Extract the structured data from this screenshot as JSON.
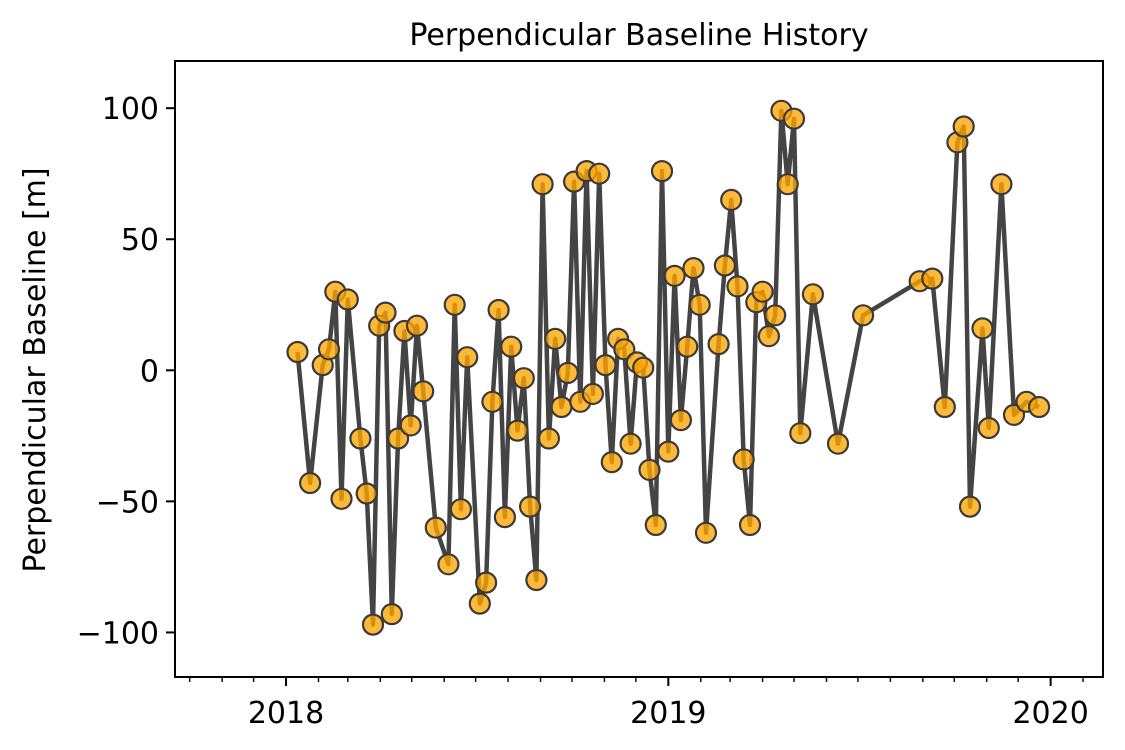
{
  "chart_data": {
    "type": "line",
    "title": "Perpendicular Baseline History",
    "xlabel": "",
    "ylabel": "Perpendicular Baseline [m]",
    "xlim": [
      "2017-09-17",
      "2020-02-20"
    ],
    "ylim": [
      -117,
      118
    ],
    "x_ticks": [
      "2018",
      "2019",
      "2020"
    ],
    "y_ticks": [
      -100,
      -50,
      0,
      50,
      100
    ],
    "y_tick_labels": [
      "−100",
      "−50",
      "0",
      "50",
      "100"
    ],
    "line_color": "#3a3a3a",
    "marker_color": "#ffa500",
    "marker_edge_color": "#3a3a3a",
    "grid": false,
    "series": [
      {
        "points": [
          [
            "2018-01-12",
            7
          ],
          [
            "2018-01-24",
            -43
          ],
          [
            "2018-02-05",
            2
          ],
          [
            "2018-02-11",
            8
          ],
          [
            "2018-02-17",
            30
          ],
          [
            "2018-02-23",
            -49
          ],
          [
            "2018-03-01",
            27
          ],
          [
            "2018-03-13",
            -26
          ],
          [
            "2018-03-19",
            -47
          ],
          [
            "2018-03-25",
            -97
          ],
          [
            "2018-03-31",
            17
          ],
          [
            "2018-04-06",
            22
          ],
          [
            "2018-04-12",
            -93
          ],
          [
            "2018-04-18",
            -26
          ],
          [
            "2018-04-24",
            15
          ],
          [
            "2018-04-30",
            -21
          ],
          [
            "2018-05-06",
            17
          ],
          [
            "2018-05-12",
            -8
          ],
          [
            "2018-05-24",
            -60
          ],
          [
            "2018-06-05",
            -74
          ],
          [
            "2018-06-11",
            25
          ],
          [
            "2018-06-17",
            -53
          ],
          [
            "2018-06-23",
            5
          ],
          [
            "2018-07-05",
            -89
          ],
          [
            "2018-07-11",
            -81
          ],
          [
            "2018-07-17",
            -12
          ],
          [
            "2018-07-23",
            23
          ],
          [
            "2018-07-29",
            -56
          ],
          [
            "2018-08-04",
            9
          ],
          [
            "2018-08-10",
            -23
          ],
          [
            "2018-08-16",
            -3
          ],
          [
            "2018-08-22",
            -52
          ],
          [
            "2018-08-28",
            -80
          ],
          [
            "2018-09-03",
            71
          ],
          [
            "2018-09-09",
            -26
          ],
          [
            "2018-09-15",
            12
          ],
          [
            "2018-09-21",
            -14
          ],
          [
            "2018-09-27",
            -1
          ],
          [
            "2018-10-03",
            72
          ],
          [
            "2018-10-09",
            -12
          ],
          [
            "2018-10-15",
            76
          ],
          [
            "2018-10-21",
            -9
          ],
          [
            "2018-10-27",
            75
          ],
          [
            "2018-11-02",
            2
          ],
          [
            "2018-11-08",
            -35
          ],
          [
            "2018-11-14",
            12
          ],
          [
            "2018-11-20",
            8
          ],
          [
            "2018-11-26",
            -28
          ],
          [
            "2018-12-02",
            3
          ],
          [
            "2018-12-08",
            1
          ],
          [
            "2018-12-14",
            -38
          ],
          [
            "2018-12-20",
            -59
          ],
          [
            "2018-12-26",
            76
          ],
          [
            "2019-01-01",
            -31
          ],
          [
            "2019-01-07",
            36
          ],
          [
            "2019-01-13",
            -19
          ],
          [
            "2019-01-19",
            9
          ],
          [
            "2019-01-25",
            39
          ],
          [
            "2019-01-31",
            25
          ],
          [
            "2019-02-06",
            -62
          ],
          [
            "2019-02-18",
            10
          ],
          [
            "2019-02-24",
            40
          ],
          [
            "2019-03-02",
            65
          ],
          [
            "2019-03-08",
            32
          ],
          [
            "2019-03-14",
            -34
          ],
          [
            "2019-03-20",
            -59
          ],
          [
            "2019-03-26",
            26
          ],
          [
            "2019-04-01",
            30
          ],
          [
            "2019-04-07",
            13
          ],
          [
            "2019-04-13",
            21
          ],
          [
            "2019-04-19",
            99
          ],
          [
            "2019-04-25",
            71
          ],
          [
            "2019-05-01",
            96
          ],
          [
            "2019-05-07",
            -24
          ],
          [
            "2019-05-19",
            29
          ],
          [
            "2019-06-12",
            -28
          ],
          [
            "2019-07-06",
            21
          ],
          [
            "2019-08-29",
            34
          ],
          [
            "2019-09-10",
            35
          ],
          [
            "2019-09-22",
            -14
          ],
          [
            "2019-10-04",
            87
          ],
          [
            "2019-10-10",
            93
          ],
          [
            "2019-10-16",
            -52
          ],
          [
            "2019-10-28",
            16
          ],
          [
            "2019-11-03",
            -22
          ],
          [
            "2019-11-15",
            71
          ],
          [
            "2019-11-27",
            -17
          ],
          [
            "2019-12-09",
            -12
          ],
          [
            "2019-12-21",
            -14
          ]
        ]
      }
    ]
  }
}
